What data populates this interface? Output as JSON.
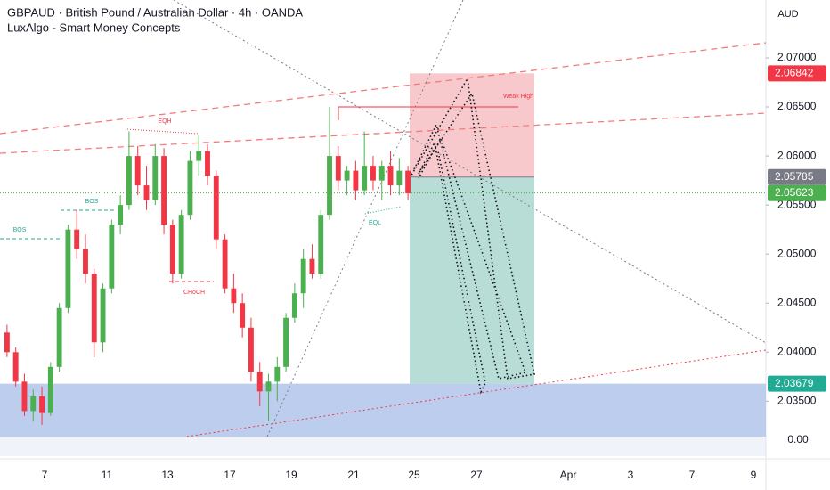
{
  "chart_data": {
    "type": "candlestick",
    "title": "GBPAUD · British Pound / Australian Dollar · 4h · OANDA",
    "subtitle": "LuxAlgo - Smart Money Concepts",
    "currency": "AUD",
    "volume_label": "0.00",
    "x_labels": [
      "7",
      "11",
      "13",
      "17",
      "19",
      "21",
      "25",
      "27",
      "Apr",
      "3",
      "7",
      "9"
    ],
    "open": [
      2.042,
      2.04,
      2.037,
      2.034,
      2.0355,
      2.0338,
      2.0385,
      2.0445,
      2.0525,
      2.0505,
      2.048,
      2.041,
      2.0465,
      2.053,
      2.055,
      2.06,
      2.057,
      2.0555,
      2.06,
      2.053,
      2.048,
      2.054,
      2.0595,
      2.0605,
      2.058,
      2.0515,
      2.0465,
      2.045,
      2.0425,
      2.038,
      2.036,
      2.037,
      2.0385,
      2.0435,
      2.046,
      2.0495,
      2.048,
      2.054,
      2.06,
      2.0575,
      2.0585,
      2.0565,
      2.059,
      2.0575,
      2.059,
      2.057,
      2.0585
    ],
    "high": [
      2.0428,
      2.0405,
      2.0378,
      2.0362,
      2.0365,
      2.039,
      2.045,
      2.053,
      2.0545,
      2.052,
      2.0485,
      2.047,
      2.0535,
      2.056,
      2.0625,
      2.061,
      2.059,
      2.0612,
      2.0608,
      2.0535,
      2.0545,
      2.0605,
      2.0622,
      2.0612,
      2.0585,
      2.052,
      2.048,
      2.046,
      2.0435,
      2.039,
      2.0378,
      2.0395,
      2.044,
      2.047,
      2.0505,
      2.051,
      2.0545,
      2.065,
      2.061,
      2.059,
      2.0595,
      2.0625,
      2.06,
      2.0595,
      2.0605,
      2.0598,
      2.059
    ],
    "low": [
      2.0395,
      2.0365,
      2.0335,
      2.033,
      2.0326,
      2.0335,
      2.038,
      2.044,
      2.0495,
      2.047,
      2.0395,
      2.04,
      2.046,
      2.052,
      2.0545,
      2.056,
      2.0545,
      2.055,
      2.052,
      2.047,
      2.0475,
      2.0535,
      2.058,
      2.057,
      2.0505,
      2.046,
      2.044,
      2.0415,
      2.037,
      2.0345,
      2.033,
      2.035,
      2.038,
      2.043,
      2.0445,
      2.0475,
      2.0475,
      2.0535,
      2.0565,
      2.056,
      2.0555,
      2.056,
      2.0565,
      2.0555,
      2.056,
      2.056,
      2.0555
    ],
    "close": [
      2.04,
      2.037,
      2.034,
      2.0355,
      2.0338,
      2.0385,
      2.0445,
      2.0525,
      2.0505,
      2.048,
      2.041,
      2.0465,
      2.053,
      2.055,
      2.06,
      2.057,
      2.0555,
      2.06,
      2.053,
      2.048,
      2.054,
      2.0595,
      2.0605,
      2.058,
      2.0515,
      2.0465,
      2.045,
      2.0425,
      2.038,
      2.036,
      2.037,
      2.0385,
      2.0435,
      2.046,
      2.0495,
      2.048,
      2.054,
      2.06,
      2.0575,
      2.0585,
      2.0565,
      2.059,
      2.0575,
      2.059,
      2.057,
      2.0585,
      2.0562
    ],
    "up_color": "#4caf50",
    "down_color": "#f23645",
    "ylim": [
      2.0314,
      2.0759
    ],
    "yticks": [
      {
        "value": 2.07,
        "label": "2.07000"
      },
      {
        "value": 2.065,
        "label": "2.06500"
      },
      {
        "value": 2.06,
        "label": "2.06000"
      },
      {
        "value": 2.055,
        "label": "2.05500"
      },
      {
        "value": 2.05,
        "label": "2.05000"
      },
      {
        "value": 2.045,
        "label": "2.04500"
      },
      {
        "value": 2.04,
        "label": "2.04000"
      },
      {
        "value": 2.035,
        "label": "2.03500"
      }
    ],
    "price_levels": [
      2.06842,
      2.05785,
      2.05623,
      2.03679
    ],
    "price_level_colors": [
      "#f23645",
      "#787b86",
      "#4caf50",
      "#22ab94"
    ],
    "annotations": [
      "EQH",
      "BOS",
      "BOS",
      "CHoCH",
      "EQL",
      "Weak High"
    ]
  }
}
